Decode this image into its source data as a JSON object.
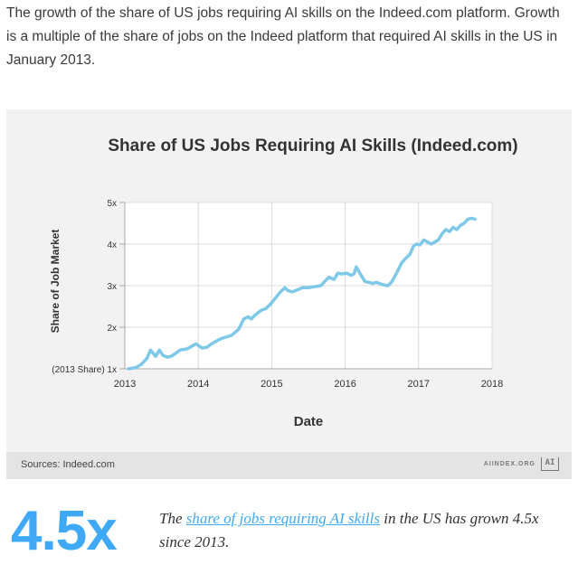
{
  "intro_text": "The growth of the share of US jobs requiring AI skills on the Indeed.com platform. Growth is a multiple of the share of jobs on the Indeed platform that required AI skills in the US in January 2013.",
  "footer": {
    "sources": "Sources: Indeed.com",
    "brand": "AIINDEX.ORG",
    "logo_text": "AI"
  },
  "stat": {
    "value": "4.5x",
    "text_before": "The ",
    "link_text": "share of jobs requiring AI skills",
    "text_after": " in the US has grown 4.5x since 2013."
  },
  "colors": {
    "line": "#7ec8e8",
    "accent": "#3fa9f5"
  },
  "chart_data": {
    "type": "line",
    "title": "Share of US Jobs Requiring AI Skills (Indeed.com)",
    "xlabel": "Date",
    "ylabel": "Share of Job Market",
    "xlim": [
      2013,
      2018
    ],
    "ylim": [
      1,
      5
    ],
    "xticks": [
      2013,
      2014,
      2015,
      2016,
      2017,
      2018
    ],
    "xtick_labels": [
      "2013",
      "2014",
      "2015",
      "2016",
      "2017",
      "2018"
    ],
    "yticks": [
      1,
      2,
      3,
      4,
      5
    ],
    "ytick_labels": [
      "(2013 Share) 1x",
      "2x",
      "3x",
      "4x",
      "5x"
    ],
    "grid": true,
    "series": [
      {
        "x": [
          2013.05,
          2013.15,
          2013.22,
          2013.3,
          2013.35,
          2013.42,
          2013.47,
          2013.52,
          2013.58,
          2013.63,
          2013.7,
          2013.75,
          2013.85,
          2013.92,
          2013.97,
          2014.05,
          2014.12,
          2014.18,
          2014.23,
          2014.28,
          2014.35,
          2014.45,
          2014.55,
          2014.62,
          2014.68,
          2014.72,
          2014.78,
          2014.85,
          2014.92,
          2014.98,
          2015.05,
          2015.12,
          2015.18,
          2015.22,
          2015.28,
          2015.35,
          2015.42,
          2015.5,
          2015.6,
          2015.67,
          2015.72,
          2015.78,
          2015.85,
          2015.9,
          2015.95,
          2016.02,
          2016.08,
          2016.12,
          2016.15,
          2016.2,
          2016.27,
          2016.32,
          2016.38,
          2016.42,
          2016.47,
          2016.52,
          2016.58,
          2016.63,
          2016.7,
          2016.77,
          2016.82,
          2016.88,
          2016.93,
          2016.97,
          2017.02,
          2017.07,
          2017.12,
          2017.17,
          2017.22,
          2017.27,
          2017.32,
          2017.37,
          2017.42,
          2017.47,
          2017.52,
          2017.57,
          2017.62,
          2017.67,
          2017.72,
          2017.77
        ],
        "y": [
          1.0,
          1.03,
          1.1,
          1.25,
          1.45,
          1.3,
          1.45,
          1.32,
          1.28,
          1.3,
          1.38,
          1.45,
          1.48,
          1.55,
          1.6,
          1.5,
          1.52,
          1.6,
          1.65,
          1.7,
          1.75,
          1.8,
          1.95,
          2.2,
          2.25,
          2.2,
          2.3,
          2.4,
          2.45,
          2.55,
          2.7,
          2.85,
          2.95,
          2.88,
          2.85,
          2.9,
          2.95,
          2.95,
          2.98,
          3.0,
          3.1,
          3.2,
          3.15,
          3.3,
          3.28,
          3.3,
          3.25,
          3.28,
          3.45,
          3.3,
          3.1,
          3.08,
          3.05,
          3.08,
          3.05,
          3.02,
          3.0,
          3.08,
          3.3,
          3.55,
          3.65,
          3.75,
          3.95,
          4.0,
          3.98,
          4.1,
          4.05,
          4.0,
          4.05,
          4.1,
          4.25,
          4.35,
          4.3,
          4.4,
          4.35,
          4.45,
          4.5,
          4.6,
          4.62,
          4.6
        ]
      }
    ]
  }
}
